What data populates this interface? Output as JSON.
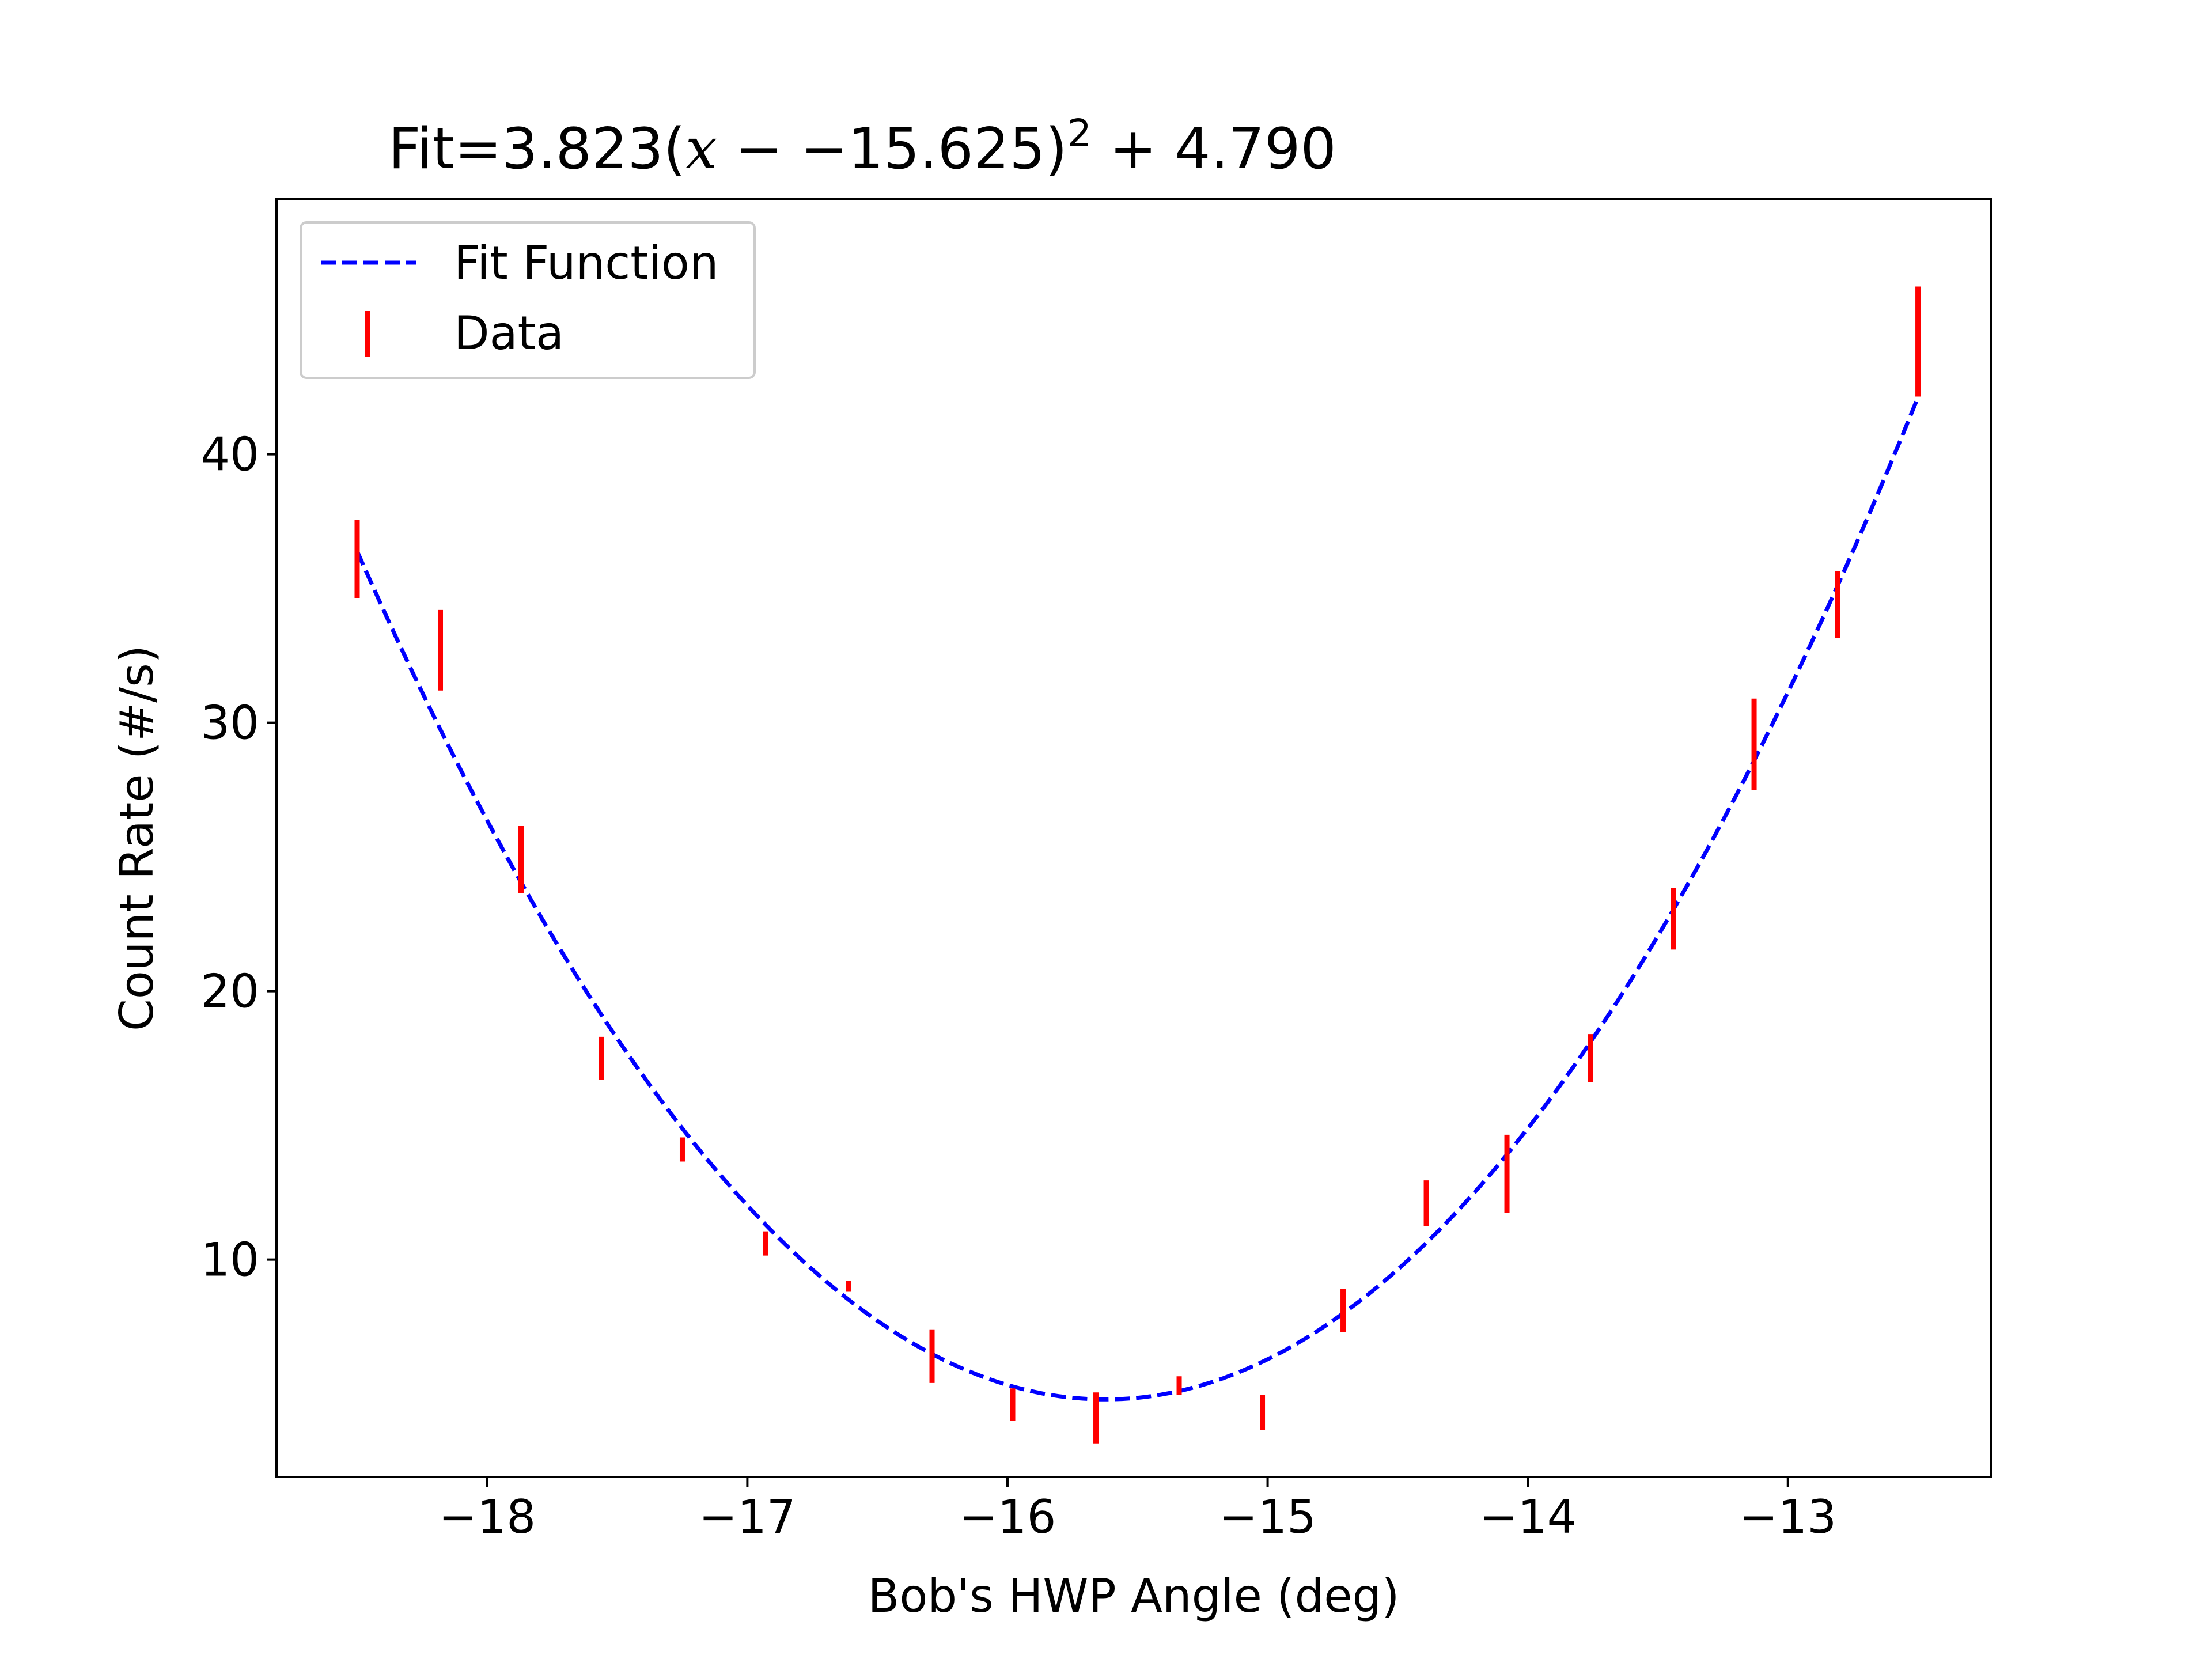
{
  "chart_data": {
    "type": "scatter",
    "title": {
      "prefix": "Fit=3.823(",
      "var": "x",
      "ops": " − −15.625)",
      "sup": "2",
      "suffix": " + 4.790"
    },
    "xlabel": "Bob's HWP Angle (deg)",
    "ylabel": "Count Rate (#/s)",
    "xlim": [
      -18.81,
      -12.22
    ],
    "ylim": [
      1.9,
      49.5
    ],
    "xticks": [
      -18,
      -17,
      -16,
      -15,
      -14,
      -13
    ],
    "yticks": [
      10,
      20,
      30,
      40
    ],
    "grid": false,
    "legend": {
      "position": "top-left",
      "entries": [
        "Fit Function",
        "Data"
      ]
    },
    "fit": {
      "name": "Fit Function",
      "a": 3.823,
      "x0": -15.625,
      "c": 4.79,
      "x_range": [
        -18.5,
        -12.5
      ],
      "color": "#0000ff",
      "style": "dashed"
    },
    "data": {
      "name": "Data",
      "color": "#ff0000",
      "x": [
        -18.5,
        -18.18,
        -17.87,
        -17.56,
        -17.25,
        -16.93,
        -16.61,
        -16.29,
        -15.98,
        -15.66,
        -15.34,
        -15.02,
        -14.71,
        -14.39,
        -14.08,
        -13.76,
        -13.44,
        -13.13,
        -12.81,
        -12.5
      ],
      "y": [
        36.1,
        32.7,
        24.9,
        17.5,
        14.1,
        10.6,
        9.0,
        6.4,
        4.6,
        4.1,
        5.3,
        4.3,
        8.1,
        12.1,
        13.2,
        17.5,
        22.7,
        29.2,
        34.4,
        44.2
      ],
      "yerr": [
        1.45,
        1.5,
        1.25,
        0.8,
        0.45,
        0.45,
        0.2,
        1.0,
        0.6,
        0.95,
        0.35,
        0.65,
        0.8,
        0.85,
        1.45,
        0.9,
        1.15,
        1.7,
        1.25,
        2.05
      ]
    }
  }
}
